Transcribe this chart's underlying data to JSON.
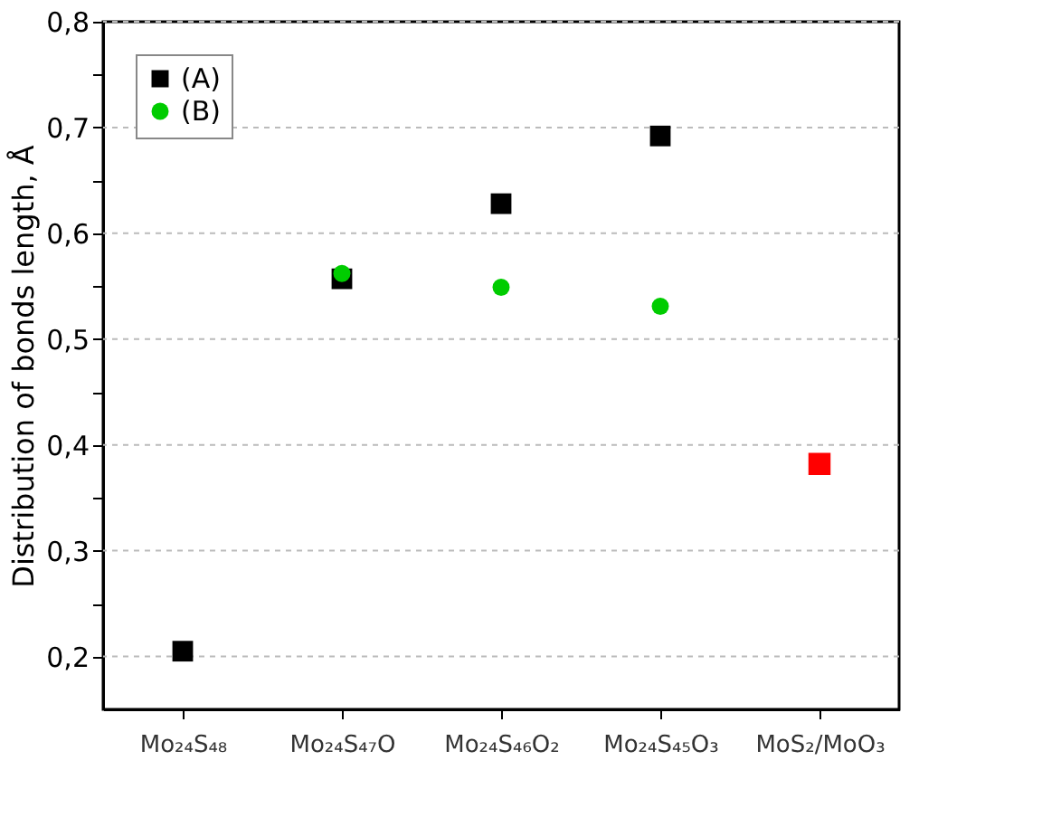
{
  "chart_data": {
    "type": "scatter",
    "ylabel": "Distribution of bonds length, Å",
    "categories": [
      "Mo₂₄S₄₈",
      "Mo₂₄S₄₇O",
      "Mo₂₄S₄₆O₂",
      "Mo₂₄S₄₅O₃",
      "MoS₂/MoO₃"
    ],
    "series": [
      {
        "name": "(A)",
        "color": "#000000",
        "marker": "square",
        "values": [
          0.205,
          0.557,
          0.628,
          0.692,
          null
        ]
      },
      {
        "name": "(B)",
        "color": "#00cc00",
        "marker": "circle",
        "values": [
          null,
          0.562,
          0.549,
          0.531,
          null
        ]
      },
      {
        "color": "#ff0000",
        "marker": "square",
        "values": [
          null,
          null,
          null,
          null,
          0.382
        ]
      }
    ],
    "ylim": [
      0.15,
      0.8
    ],
    "yticks": [
      {
        "value": 0.2,
        "label": "0,2"
      },
      {
        "value": 0.25,
        "label": null
      },
      {
        "value": 0.3,
        "label": "0,3"
      },
      {
        "value": 0.35,
        "label": null
      },
      {
        "value": 0.4,
        "label": "0,4"
      },
      {
        "value": 0.45,
        "label": null
      },
      {
        "value": 0.5,
        "label": "0,5"
      },
      {
        "value": 0.55,
        "label": null
      },
      {
        "value": 0.6,
        "label": "0,6"
      },
      {
        "value": 0.65,
        "label": null
      },
      {
        "value": 0.7,
        "label": "0,7"
      },
      {
        "value": 0.75,
        "label": null
      },
      {
        "value": 0.8,
        "label": "0,8"
      }
    ],
    "grid": "y",
    "legend": "top left"
  }
}
